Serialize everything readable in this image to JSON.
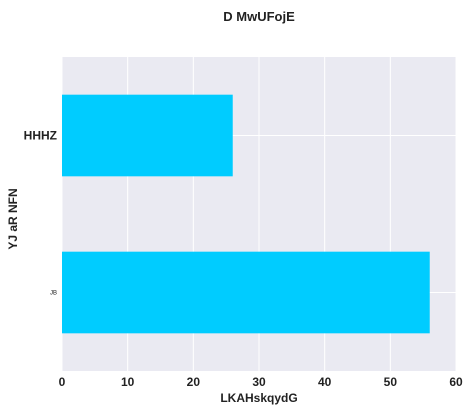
{
  "chart_data": {
    "type": "bar",
    "orientation": "horizontal",
    "title": "D MwUFojE",
    "xlabel": "LKAHskqydG",
    "ylabel": "YJ aR NFN",
    "categories": [
      "HHHZ",
      "JB"
    ],
    "values": [
      26,
      56
    ],
    "xlim": [
      0,
      60
    ],
    "xticks": [
      0,
      10,
      20,
      30,
      40,
      50,
      60
    ],
    "grid": true,
    "bar_color": "#00ccff",
    "background_color": "#eaeaf2"
  }
}
